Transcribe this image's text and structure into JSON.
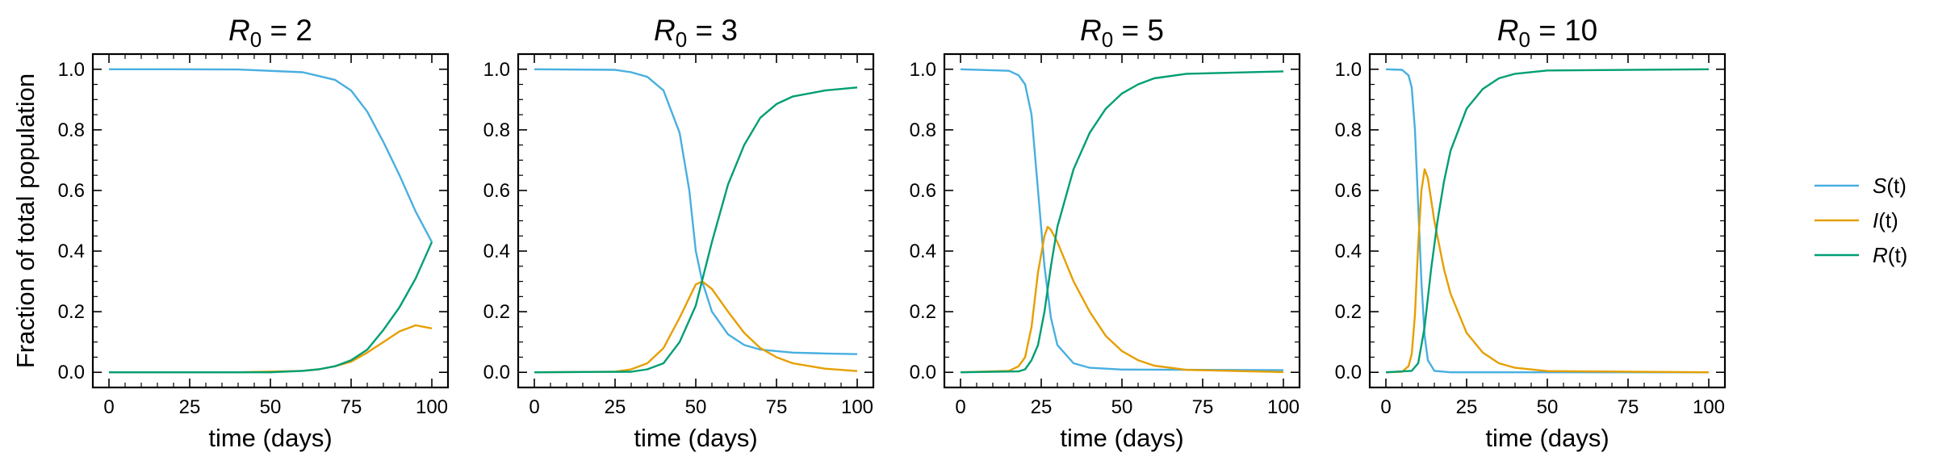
{
  "figure": {
    "ylabel": "Fraction of total population",
    "legend": {
      "placement": "right",
      "entries": [
        {
          "var": "S",
          "arg": "(t)",
          "color": "#48afe0"
        },
        {
          "var": "I",
          "arg": "(t)",
          "color": "#e69f00"
        },
        {
          "var": "R",
          "arg": "(t)",
          "color": "#009e73"
        }
      ]
    }
  },
  "chart_data": [
    {
      "type": "line",
      "title": {
        "symbol": "R",
        "sub": "0",
        "rest": " = 2"
      },
      "r0": 2,
      "xlabel": "time (days)",
      "xlim": [
        -5,
        105
      ],
      "ylim": [
        -0.05,
        1.05
      ],
      "xticks": [
        0,
        25,
        50,
        75,
        100
      ],
      "yticks": [
        0.0,
        0.2,
        0.4,
        0.6,
        0.8,
        1.0
      ],
      "x_end": 100,
      "peak_infected": 0.15,
      "series": [
        {
          "name": "S(t)",
          "points": [
            [
              0,
              1.0
            ],
            [
              20,
              1.0
            ],
            [
              40,
              0.999
            ],
            [
              60,
              0.99
            ],
            [
              70,
              0.965
            ],
            [
              75,
              0.93
            ],
            [
              80,
              0.86
            ],
            [
              85,
              0.76
            ],
            [
              90,
              0.65
            ],
            [
              95,
              0.53
            ],
            [
              100,
              0.43
            ]
          ]
        },
        {
          "name": "I(t)",
          "points": [
            [
              0,
              0.0
            ],
            [
              40,
              0.0
            ],
            [
              60,
              0.005
            ],
            [
              65,
              0.01
            ],
            [
              70,
              0.02
            ],
            [
              75,
              0.035
            ],
            [
              80,
              0.065
            ],
            [
              85,
              0.1
            ],
            [
              90,
              0.135
            ],
            [
              95,
              0.155
            ],
            [
              100,
              0.145
            ]
          ]
        },
        {
          "name": "R(t)",
          "points": [
            [
              0,
              0.0
            ],
            [
              50,
              0.0
            ],
            [
              60,
              0.005
            ],
            [
              65,
              0.01
            ],
            [
              70,
              0.02
            ],
            [
              75,
              0.04
            ],
            [
              80,
              0.075
            ],
            [
              85,
              0.14
            ],
            [
              90,
              0.215
            ],
            [
              95,
              0.31
            ],
            [
              100,
              0.43
            ]
          ]
        }
      ]
    },
    {
      "type": "line",
      "title": {
        "symbol": "R",
        "sub": "0",
        "rest": " = 3"
      },
      "r0": 3,
      "xlabel": "time (days)",
      "xlim": [
        -5,
        105
      ],
      "ylim": [
        -0.05,
        1.05
      ],
      "xticks": [
        0,
        25,
        50,
        75,
        100
      ],
      "yticks": [
        0.0,
        0.2,
        0.4,
        0.6,
        0.8,
        1.0
      ],
      "x_end": 100,
      "peak_infected": 0.3,
      "series": [
        {
          "name": "S(t)",
          "points": [
            [
              0,
              1.0
            ],
            [
              25,
              0.998
            ],
            [
              30,
              0.99
            ],
            [
              35,
              0.975
            ],
            [
              40,
              0.93
            ],
            [
              45,
              0.79
            ],
            [
              48,
              0.6
            ],
            [
              50,
              0.4
            ],
            [
              52,
              0.3
            ],
            [
              55,
              0.2
            ],
            [
              60,
              0.125
            ],
            [
              65,
              0.09
            ],
            [
              70,
              0.075
            ],
            [
              80,
              0.065
            ],
            [
              90,
              0.062
            ],
            [
              100,
              0.06
            ]
          ]
        },
        {
          "name": "I(t)",
          "points": [
            [
              0,
              0.0
            ],
            [
              25,
              0.002
            ],
            [
              30,
              0.01
            ],
            [
              35,
              0.03
            ],
            [
              40,
              0.08
            ],
            [
              45,
              0.18
            ],
            [
              50,
              0.29
            ],
            [
              52,
              0.3
            ],
            [
              55,
              0.275
            ],
            [
              60,
              0.2
            ],
            [
              65,
              0.13
            ],
            [
              70,
              0.08
            ],
            [
              75,
              0.05
            ],
            [
              80,
              0.03
            ],
            [
              90,
              0.012
            ],
            [
              100,
              0.004
            ]
          ]
        },
        {
          "name": "R(t)",
          "points": [
            [
              0,
              0.0
            ],
            [
              30,
              0.002
            ],
            [
              35,
              0.01
            ],
            [
              40,
              0.03
            ],
            [
              45,
              0.1
            ],
            [
              50,
              0.22
            ],
            [
              55,
              0.43
            ],
            [
              60,
              0.62
            ],
            [
              65,
              0.75
            ],
            [
              70,
              0.84
            ],
            [
              75,
              0.885
            ],
            [
              80,
              0.91
            ],
            [
              90,
              0.93
            ],
            [
              100,
              0.94
            ]
          ]
        }
      ]
    },
    {
      "type": "line",
      "title": {
        "symbol": "R",
        "sub": "0",
        "rest": " = 5"
      },
      "r0": 5,
      "xlabel": "time (days)",
      "xlim": [
        -5,
        105
      ],
      "ylim": [
        -0.05,
        1.05
      ],
      "xticks": [
        0,
        25,
        50,
        75,
        100
      ],
      "yticks": [
        0.0,
        0.2,
        0.4,
        0.6,
        0.8,
        1.0
      ],
      "x_end": 100,
      "peak_infected": 0.48,
      "series": [
        {
          "name": "S(t)",
          "points": [
            [
              0,
              1.0
            ],
            [
              15,
              0.995
            ],
            [
              18,
              0.98
            ],
            [
              20,
              0.95
            ],
            [
              22,
              0.85
            ],
            [
              24,
              0.6
            ],
            [
              26,
              0.35
            ],
            [
              28,
              0.18
            ],
            [
              30,
              0.09
            ],
            [
              35,
              0.03
            ],
            [
              40,
              0.015
            ],
            [
              50,
              0.009
            ],
            [
              100,
              0.007
            ]
          ]
        },
        {
          "name": "I(t)",
          "points": [
            [
              0,
              0.0
            ],
            [
              15,
              0.005
            ],
            [
              18,
              0.02
            ],
            [
              20,
              0.05
            ],
            [
              22,
              0.15
            ],
            [
              24,
              0.33
            ],
            [
              26,
              0.45
            ],
            [
              27,
              0.48
            ],
            [
              28,
              0.47
            ],
            [
              30,
              0.43
            ],
            [
              35,
              0.3
            ],
            [
              40,
              0.2
            ],
            [
              45,
              0.12
            ],
            [
              50,
              0.07
            ],
            [
              55,
              0.04
            ],
            [
              60,
              0.022
            ],
            [
              70,
              0.008
            ],
            [
              100,
              0.001
            ]
          ]
        },
        {
          "name": "R(t)",
          "points": [
            [
              0,
              0.0
            ],
            [
              18,
              0.003
            ],
            [
              20,
              0.01
            ],
            [
              22,
              0.04
            ],
            [
              24,
              0.09
            ],
            [
              26,
              0.2
            ],
            [
              28,
              0.35
            ],
            [
              30,
              0.48
            ],
            [
              35,
              0.67
            ],
            [
              40,
              0.79
            ],
            [
              45,
              0.87
            ],
            [
              50,
              0.92
            ],
            [
              55,
              0.95
            ],
            [
              60,
              0.97
            ],
            [
              70,
              0.985
            ],
            [
              100,
              0.993
            ]
          ]
        }
      ]
    },
    {
      "type": "line",
      "title": {
        "symbol": "R",
        "sub": "0",
        "rest": " = 10"
      },
      "r0": 10,
      "xlabel": "time (days)",
      "xlim": [
        -5,
        105
      ],
      "ylim": [
        -0.05,
        1.05
      ],
      "xticks": [
        0,
        25,
        50,
        75,
        100
      ],
      "yticks": [
        0.0,
        0.2,
        0.4,
        0.6,
        0.8,
        1.0
      ],
      "x_end": 100,
      "peak_infected": 0.67,
      "series": [
        {
          "name": "S(t)",
          "points": [
            [
              0,
              1.0
            ],
            [
              5,
              0.998
            ],
            [
              7,
              0.98
            ],
            [
              8,
              0.94
            ],
            [
              9,
              0.8
            ],
            [
              10,
              0.55
            ],
            [
              11,
              0.3
            ],
            [
              12,
              0.12
            ],
            [
              13,
              0.04
            ],
            [
              15,
              0.005
            ],
            [
              20,
              0.0
            ],
            [
              100,
              0.0
            ]
          ]
        },
        {
          "name": "I(t)",
          "points": [
            [
              0,
              0.0
            ],
            [
              5,
              0.002
            ],
            [
              7,
              0.02
            ],
            [
              8,
              0.06
            ],
            [
              9,
              0.19
            ],
            [
              10,
              0.42
            ],
            [
              11,
              0.6
            ],
            [
              12,
              0.67
            ],
            [
              13,
              0.64
            ],
            [
              15,
              0.5
            ],
            [
              18,
              0.34
            ],
            [
              20,
              0.26
            ],
            [
              25,
              0.13
            ],
            [
              30,
              0.065
            ],
            [
              35,
              0.03
            ],
            [
              40,
              0.015
            ],
            [
              50,
              0.004
            ],
            [
              100,
              0.0
            ]
          ]
        },
        {
          "name": "R(t)",
          "points": [
            [
              0,
              0.0
            ],
            [
              8,
              0.005
            ],
            [
              10,
              0.03
            ],
            [
              12,
              0.15
            ],
            [
              14,
              0.34
            ],
            [
              16,
              0.5
            ],
            [
              18,
              0.63
            ],
            [
              20,
              0.73
            ],
            [
              25,
              0.87
            ],
            [
              30,
              0.935
            ],
            [
              35,
              0.97
            ],
            [
              40,
              0.985
            ],
            [
              50,
              0.996
            ],
            [
              100,
              1.0
            ]
          ]
        }
      ]
    }
  ]
}
